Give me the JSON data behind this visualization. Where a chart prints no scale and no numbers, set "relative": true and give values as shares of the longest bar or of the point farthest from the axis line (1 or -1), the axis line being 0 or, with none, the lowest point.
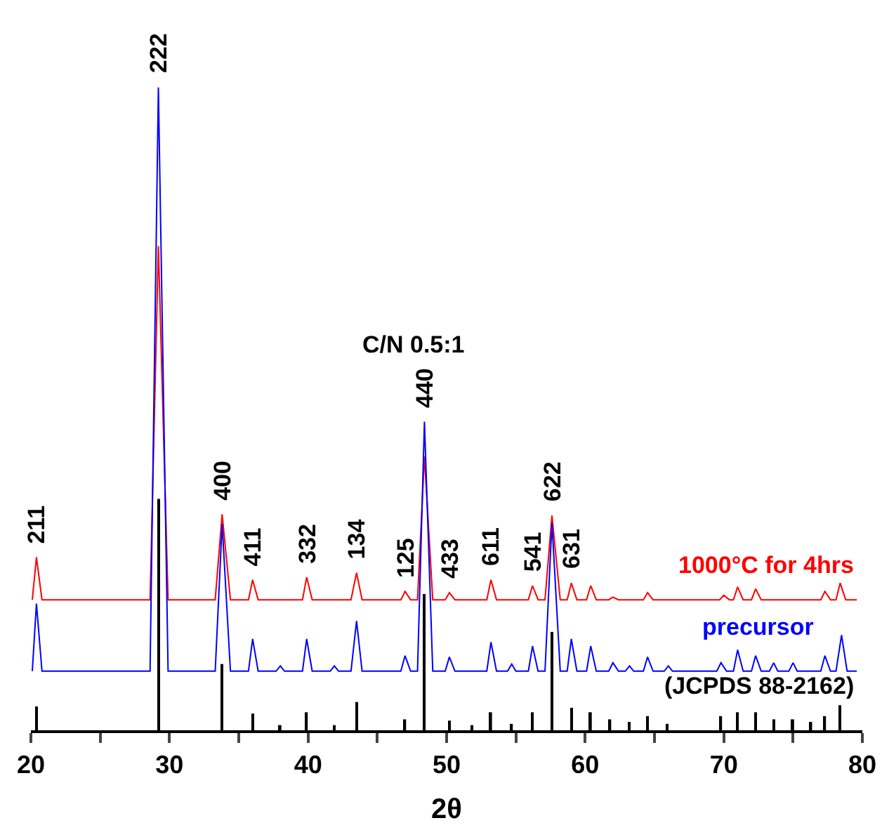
{
  "chart_data": {
    "type": "line",
    "relative": true,
    "xlabel": "2θ",
    "xlim": [
      20,
      80
    ],
    "xticks": [
      20,
      {
        "value": 25,
        "label": null
      },
      30,
      {
        "value": 35,
        "label": null
      },
      40,
      {
        "value": 45,
        "label": null
      },
      50,
      {
        "value": 55,
        "label": null
      },
      60,
      {
        "value": 65,
        "label": null
      },
      70,
      {
        "value": 75,
        "label": null
      },
      80
    ],
    "legend": false,
    "marker": "none",
    "line_style": "solid",
    "tick_labels": "x",
    "series": [
      {
        "name": "1000°C for 4hrs",
        "color": "#ff0000",
        "x": [
          20.1,
          20.4,
          20.8,
          28.6,
          29.2,
          29.9,
          33.3,
          33.8,
          34.4,
          35.7,
          36,
          36.4,
          39.6,
          39.9,
          40.3,
          43.1,
          43.5,
          43.9,
          46.7,
          47,
          47.4,
          47.9,
          48.4,
          49.0,
          49.9,
          50.2,
          50.6,
          52.9,
          53.2,
          53.6,
          55.9,
          56.2,
          56.6,
          57.1,
          57.6,
          58.2,
          58.7,
          59,
          59.4,
          60.1,
          60.4,
          60.8,
          61.7,
          62,
          62.4,
          64.2,
          64.5,
          64.9,
          69.7,
          70,
          70.4,
          70.7,
          71,
          71.4,
          72.0,
          72.3,
          72.7,
          77.0,
          77.3,
          77.7,
          78.1,
          78.4,
          78.8,
          79.6
        ],
        "values": [
          0.203,
          0.269,
          0.203,
          0.203,
          0.753,
          0.203,
          0.203,
          0.336,
          0.203,
          0.203,
          0.234,
          0.203,
          0.203,
          0.238,
          0.203,
          0.203,
          0.245,
          0.203,
          0.203,
          0.216,
          0.203,
          0.203,
          0.426,
          0.203,
          0.203,
          0.214,
          0.203,
          0.203,
          0.234,
          0.203,
          0.203,
          0.225,
          0.203,
          0.203,
          0.334,
          0.203,
          0.203,
          0.229,
          0.203,
          0.203,
          0.225,
          0.203,
          0.203,
          0.207,
          0.203,
          0.203,
          0.214,
          0.203,
          0.203,
          0.21,
          0.203,
          0.203,
          0.223,
          0.203,
          0.203,
          0.22,
          0.203,
          0.203,
          0.216,
          0.203,
          0.203,
          0.229,
          0.203,
          0.203
        ]
      },
      {
        "name": "precursor",
        "color": "#0000ff",
        "x": [
          20.1,
          20.4,
          20.8,
          28.6,
          29.2,
          29.9,
          33.3,
          33.8,
          34.4,
          35.7,
          36,
          36.4,
          37.7,
          38,
          38.3,
          39.6,
          39.9,
          40.3,
          41.6,
          41.9,
          42.2,
          43.1,
          43.5,
          43.9,
          46.7,
          47,
          47.4,
          47.9,
          48.4,
          49.0,
          49.9,
          50.2,
          50.6,
          52.9,
          53.2,
          53.6,
          54.4,
          54.7,
          55.0,
          55.9,
          56.2,
          56.6,
          57.1,
          57.6,
          58.2,
          58.7,
          59,
          59.4,
          60.1,
          60.4,
          60.8,
          61.7,
          62,
          62.4,
          62.9,
          63.2,
          63.5,
          64.2,
          64.5,
          64.9,
          65.7,
          66,
          66.3,
          69.5,
          69.8,
          70.2,
          70.7,
          71,
          71.4,
          72.0,
          72.3,
          72.7,
          73.3,
          73.6,
          73.9,
          74.7,
          75,
          75.3,
          77.0,
          77.3,
          77.7,
          78.1,
          78.5,
          78.9,
          79.6
        ],
        "values": [
          0.092,
          0.197,
          0.092,
          0.092,
          1.0,
          0.092,
          0.092,
          0.321,
          0.092,
          0.092,
          0.142,
          0.092,
          0.092,
          0.1,
          0.092,
          0.092,
          0.142,
          0.092,
          0.092,
          0.1,
          0.092,
          0.092,
          0.17,
          0.092,
          0.092,
          0.116,
          0.092,
          0.092,
          0.48,
          0.092,
          0.092,
          0.114,
          0.092,
          0.092,
          0.137,
          0.092,
          0.092,
          0.103,
          0.092,
          0.092,
          0.131,
          0.092,
          0.092,
          0.323,
          0.092,
          0.092,
          0.142,
          0.092,
          0.092,
          0.131,
          0.092,
          0.092,
          0.105,
          0.092,
          0.092,
          0.1,
          0.092,
          0.092,
          0.114,
          0.092,
          0.092,
          0.1,
          0.092,
          0.092,
          0.105,
          0.092,
          0.092,
          0.125,
          0.092,
          0.092,
          0.116,
          0.092,
          0.092,
          0.105,
          0.092,
          0.092,
          0.105,
          0.092,
          0.092,
          0.116,
          0.092,
          0.092,
          0.148,
          0.092,
          0.092
        ]
      },
      {
        "name": "(JCPDS 88-2162)",
        "color": "#000000",
        "type": "bar",
        "x": [
          20.4,
          29.2,
          33.8,
          36,
          38,
          39.9,
          41.9,
          43.5,
          47,
          48.4,
          50.2,
          51.8,
          53.2,
          54.7,
          56.2,
          57.6,
          59,
          60.4,
          61.8,
          63.2,
          64.5,
          65.9,
          69.8,
          71,
          72.3,
          73.6,
          75,
          76.3,
          77.3,
          78.4
        ],
        "values": [
          0.037,
          0.36,
          0.103,
          0.026,
          0.008,
          0.028,
          0.008,
          0.044,
          0.017,
          0.212,
          0.015,
          0.008,
          0.028,
          0.01,
          0.028,
          0.153,
          0.035,
          0.028,
          0.017,
          0.013,
          0.022,
          0.01,
          0.022,
          0.028,
          0.028,
          0.017,
          0.017,
          0.013,
          0.022,
          0.039
        ]
      }
    ],
    "annotations": [
      {
        "text": "211",
        "x": 20.4,
        "y": 0.269
      },
      {
        "text": "222",
        "x": 29.2,
        "y": 1.0
      },
      {
        "text": "400",
        "x": 33.8,
        "y": 0.336
      },
      {
        "text": "411",
        "x": 36,
        "y": 0.234
      },
      {
        "text": "332",
        "x": 39.9,
        "y": 0.238
      },
      {
        "text": "134",
        "x": 43.5,
        "y": 0.245
      },
      {
        "text": "125",
        "x": 47,
        "y": 0.216
      },
      {
        "text": "440",
        "x": 48.4,
        "y": 0.48
      },
      {
        "text": "433",
        "x": 50.2,
        "y": 0.214
      },
      {
        "text": "611",
        "x": 53.2,
        "y": 0.234
      },
      {
        "text": "541",
        "x": 56.2,
        "y": 0.225
      },
      {
        "text": "622",
        "x": 57.6,
        "y": 0.334
      },
      {
        "text": "631",
        "x": 59,
        "y": 0.229
      },
      "C/N 0.5:1"
    ]
  }
}
